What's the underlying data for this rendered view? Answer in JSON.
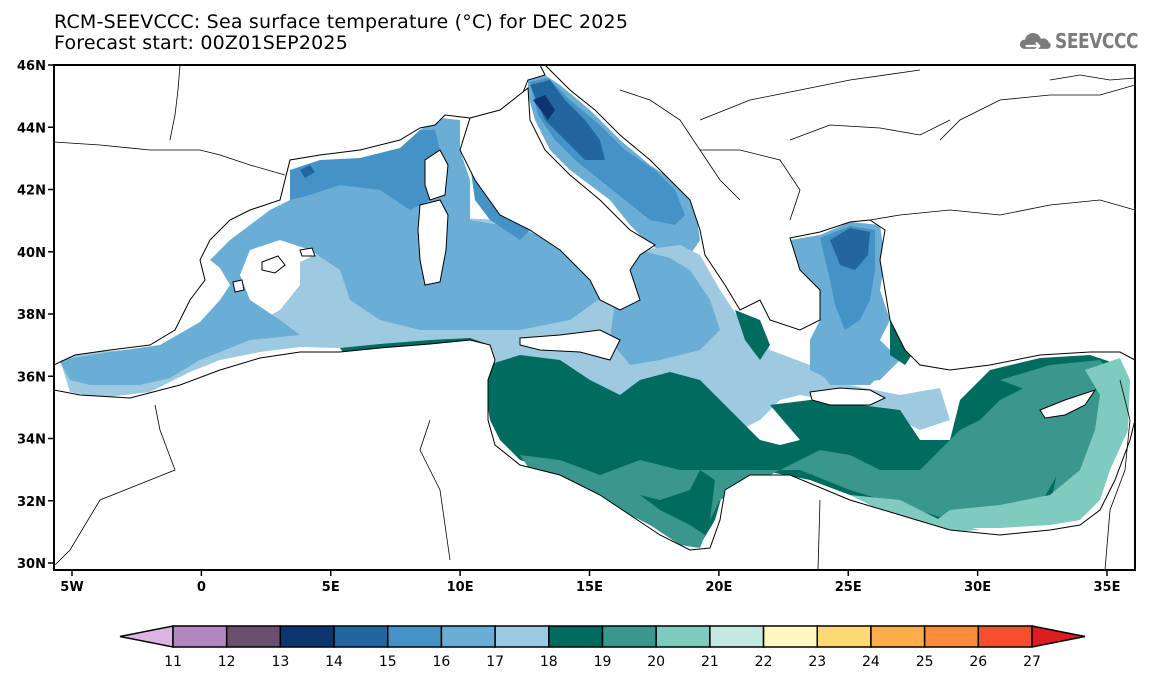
{
  "header": {
    "title": "RCM-SEEVCCC: Sea surface temperature (°C) for DEC 2025",
    "subtitle": "Forecast start: 00Z01SEP2025"
  },
  "logo": {
    "text": "SEEVCCC",
    "icon": "cloud-arrow-icon",
    "color": "#7b7b7b"
  },
  "map": {
    "projection": "lat-lon",
    "lon_range": [
      -5.7,
      36.1
    ],
    "lat_range": [
      30,
      46
    ],
    "y_axis_ticks": [
      {
        "value": 46,
        "label": "46N"
      },
      {
        "value": 44,
        "label": "44N"
      },
      {
        "value": 42,
        "label": "42N"
      },
      {
        "value": 40,
        "label": "40N"
      },
      {
        "value": 38,
        "label": "38N"
      },
      {
        "value": 36,
        "label": "36N"
      },
      {
        "value": 34,
        "label": "34N"
      },
      {
        "value": 32,
        "label": "32N"
      },
      {
        "value": 30,
        "label": "30N"
      }
    ],
    "x_axis_ticks": [
      {
        "value": -5,
        "label": "5W"
      },
      {
        "value": 0,
        "label": "0"
      },
      {
        "value": 5,
        "label": "5E"
      },
      {
        "value": 10,
        "label": "10E"
      },
      {
        "value": 15,
        "label": "15E"
      },
      {
        "value": 20,
        "label": "20E"
      },
      {
        "value": 25,
        "label": "25E"
      },
      {
        "value": 30,
        "label": "30E"
      },
      {
        "value": 35,
        "label": "35E"
      }
    ],
    "variable": "Sea surface temperature",
    "units": "°C",
    "period": "DEC 2025",
    "observed_range_c": [
      13,
      22
    ]
  },
  "colorbar": {
    "levels": [
      11,
      12,
      13,
      14,
      15,
      16,
      17,
      18,
      19,
      20,
      21,
      22,
      23,
      24,
      25,
      26,
      27
    ],
    "labels": [
      "11",
      "12",
      "13",
      "14",
      "15",
      "16",
      "17",
      "18",
      "19",
      "20",
      "21",
      "22",
      "23",
      "24",
      "25",
      "26",
      "27"
    ],
    "under_color": "#dcb6e2",
    "over_color": "#dd1d20",
    "colors": [
      "#b087be",
      "#6a4f6f",
      "#0f3570",
      "#22669f",
      "#4593c6",
      "#6aaed6",
      "#9ecae1",
      "#006b5f",
      "#3a978e",
      "#80cbbf",
      "#c6e8e2",
      "#fff8c2",
      "#fdd974",
      "#fdae4b",
      "#fc8b3a",
      "#f74e2c"
    ]
  }
}
